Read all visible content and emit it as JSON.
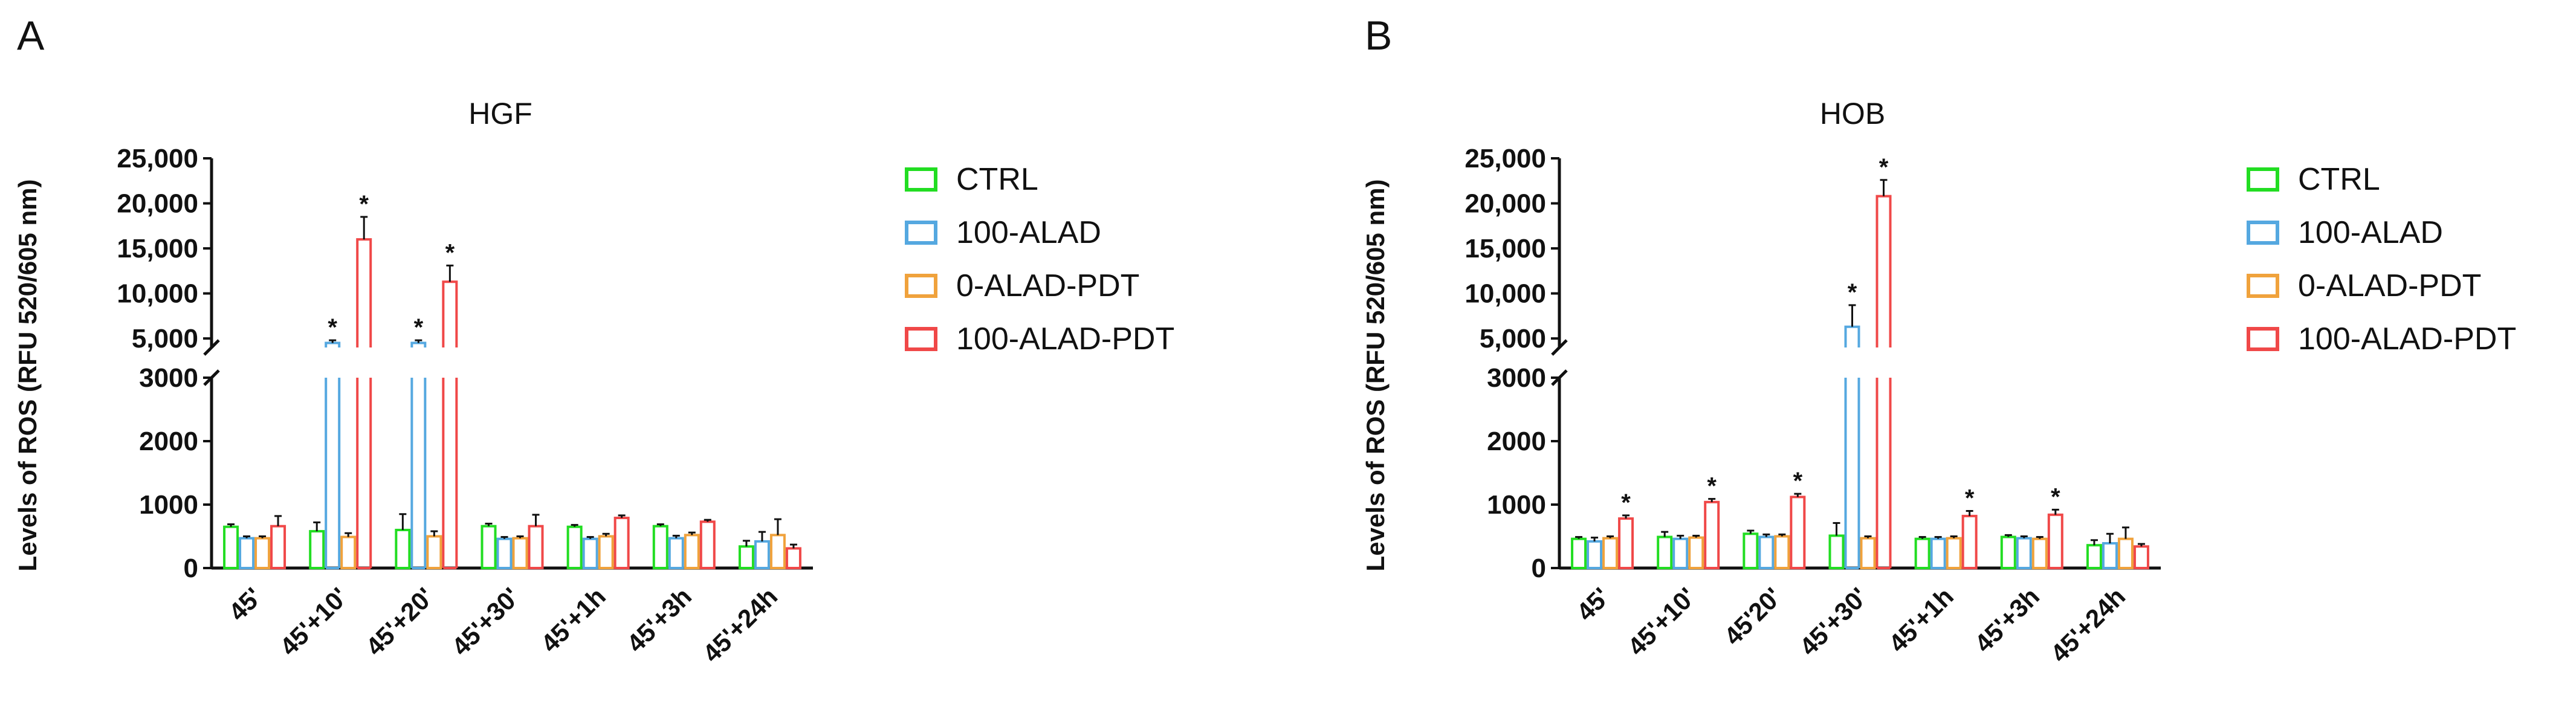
{
  "chart_data": [
    {
      "type": "bar",
      "panel": "A",
      "title": "HGF",
      "ylabel": "Levels of ROS (RFU 520/605 nm)",
      "xlabel": "",
      "y_axis": {
        "broken": true,
        "lower_range": [
          0,
          3000
        ],
        "lower_ticks": [
          "0",
          "1000",
          "2000",
          "3000"
        ],
        "upper_range": [
          4000,
          25000
        ],
        "upper_ticks": [
          "5,000",
          "10,000",
          "15,000",
          "20,000",
          "25,000"
        ]
      },
      "categories": [
        "45'",
        "45'+10'",
        "45'+20'",
        "45'+30'",
        "45'+1h",
        "45'+3h",
        "45'+24h"
      ],
      "series": [
        {
          "name": "CTRL",
          "color": "#22dd22",
          "values": [
            650,
            580,
            600,
            660,
            650,
            660,
            340
          ],
          "errors": [
            40,
            140,
            250,
            40,
            30,
            30,
            90
          ]
        },
        {
          "name": "100-ALAD",
          "color": "#55a8e0",
          "values": [
            470,
            4500,
            4500,
            460,
            460,
            470,
            420
          ],
          "errors": [
            30,
            300,
            300,
            30,
            30,
            40,
            150
          ]
        },
        {
          "name": "0-ALAD-PDT",
          "color": "#f0a23c",
          "values": [
            470,
            490,
            500,
            470,
            500,
            520,
            520
          ],
          "errors": [
            30,
            60,
            80,
            30,
            40,
            40,
            250
          ]
        },
        {
          "name": "100-ALAD-PDT",
          "color": "#f04848",
          "values": [
            660,
            16000,
            11300,
            660,
            790,
            730,
            310
          ],
          "errors": [
            160,
            2500,
            1800,
            180,
            40,
            30,
            60
          ]
        }
      ],
      "significance": [
        {
          "category": "45'+10'",
          "series": "100-ALAD",
          "label": "*"
        },
        {
          "category": "45'+10'",
          "series": "100-ALAD-PDT",
          "label": "*"
        },
        {
          "category": "45'+20'",
          "series": "100-ALAD",
          "label": "*"
        },
        {
          "category": "45'+20'",
          "series": "100-ALAD-PDT",
          "label": "*"
        }
      ],
      "legend": [
        "CTRL",
        "100-ALAD",
        "0-ALAD-PDT",
        "100-ALAD-PDT"
      ],
      "legend_position": "right"
    },
    {
      "type": "bar",
      "panel": "B",
      "title": "HOB",
      "ylabel": "Levels of ROS (RFU 520/605 nm)",
      "xlabel": "",
      "y_axis": {
        "broken": true,
        "lower_range": [
          0,
          3000
        ],
        "lower_ticks": [
          "0",
          "1000",
          "2000",
          "3000"
        ],
        "upper_range": [
          4000,
          25000
        ],
        "upper_ticks": [
          "5,000",
          "10,000",
          "15,000",
          "20,000",
          "25,000"
        ]
      },
      "categories": [
        "45'",
        "45'+10'",
        "45'20'",
        "45'+30'",
        "45'+1h",
        "45'+3h",
        "45'+24h"
      ],
      "series": [
        {
          "name": "CTRL",
          "color": "#22dd22",
          "values": [
            460,
            490,
            540,
            510,
            460,
            490,
            360
          ],
          "errors": [
            30,
            80,
            50,
            200,
            30,
            30,
            80
          ]
        },
        {
          "name": "100-ALAD",
          "color": "#55a8e0",
          "values": [
            420,
            460,
            490,
            6300,
            460,
            470,
            390
          ],
          "errors": [
            60,
            50,
            40,
            2400,
            30,
            30,
            150
          ]
        },
        {
          "name": "0-ALAD-PDT",
          "color": "#f0a23c",
          "values": [
            470,
            480,
            500,
            470,
            470,
            460,
            460
          ],
          "errors": [
            30,
            30,
            30,
            30,
            30,
            30,
            180
          ]
        },
        {
          "name": "100-ALAD-PDT",
          "color": "#f04848",
          "values": [
            780,
            1040,
            1120,
            20800,
            820,
            840,
            340
          ],
          "errors": [
            50,
            50,
            50,
            1800,
            80,
            80,
            40
          ]
        }
      ],
      "significance": [
        {
          "category": "45'",
          "series": "100-ALAD-PDT",
          "label": "*"
        },
        {
          "category": "45'+10'",
          "series": "100-ALAD-PDT",
          "label": "*"
        },
        {
          "category": "45'20'",
          "series": "100-ALAD-PDT",
          "label": "*"
        },
        {
          "category": "45'+30'",
          "series": "100-ALAD",
          "label": "*"
        },
        {
          "category": "45'+30'",
          "series": "100-ALAD-PDT",
          "label": "*"
        },
        {
          "category": "45'+1h",
          "series": "100-ALAD-PDT",
          "label": "*"
        },
        {
          "category": "45'+3h",
          "series": "100-ALAD-PDT",
          "label": "*"
        }
      ],
      "legend": [
        "CTRL",
        "100-ALAD",
        "0-ALAD-PDT",
        "100-ALAD-PDT"
      ],
      "legend_position": "right"
    }
  ]
}
